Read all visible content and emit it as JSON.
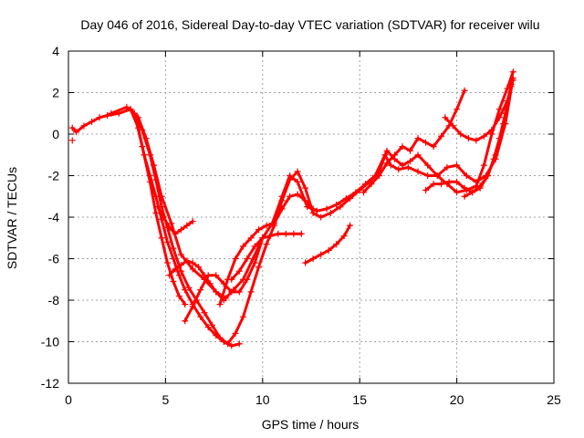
{
  "chart_data": {
    "type": "scatter",
    "title": "Day 046 of 2016, Sidereal Day-to-day VTEC variation (SDTVAR) for receiver wilu",
    "xlabel": "GPS time / hours",
    "ylabel": "SDTVAR / TECUs",
    "xlim": [
      0,
      25
    ],
    "ylim": [
      -12,
      4
    ],
    "xticks": [
      "0",
      "5",
      "10",
      "15",
      "20",
      "25"
    ],
    "yticks": [
      "4",
      "2",
      "0",
      "-2",
      "-4",
      "-6",
      "-8",
      "-10",
      "-12"
    ],
    "grid": true,
    "marker": "+",
    "color": "#ff0000",
    "series": [
      {
        "x": [
          0.2,
          0.4,
          0.8,
          1.2,
          1.6,
          2.0,
          2.6,
          3.2,
          3.6,
          4.0,
          4.4,
          4.8,
          5.3,
          5.8,
          6.4,
          7.0,
          7.6,
          8.1,
          8.5,
          9.0,
          9.5,
          10.0,
          10.5,
          11.0,
          11.4,
          11.8,
          12.3,
          12.8,
          13.3,
          13.8,
          14.3,
          14.8,
          15.3,
          15.8,
          16.3,
          16.6,
          17.0,
          17.5,
          18.0,
          18.5,
          19.0,
          19.5,
          20.0,
          20.5,
          21.0,
          21.5,
          22.0,
          22.5,
          22.9
        ],
        "y": [
          0.3,
          0.1,
          0.4,
          0.6,
          0.8,
          0.9,
          1.0,
          1.2,
          0.8,
          -0.2,
          -1.5,
          -3.0,
          -4.3,
          -5.8,
          -6.5,
          -7.0,
          -7.6,
          -7.9,
          -7.5,
          -7.0,
          -6.0,
          -5.0,
          -4.3,
          -3.0,
          -2.0,
          -2.3,
          -3.5,
          -3.7,
          -3.6,
          -3.4,
          -3.1,
          -2.8,
          -2.4,
          -2.0,
          -1.0,
          -1.5,
          -1.7,
          -1.6,
          -1.8,
          -2.0,
          -2.0,
          -1.6,
          -1.5,
          -2.0,
          -2.3,
          -2.0,
          -1.2,
          0.5,
          2.7
        ]
      },
      {
        "x": [
          2.2,
          3.0,
          3.4,
          3.8,
          4.2,
          4.5,
          4.8,
          5.1,
          5.4,
          5.8,
          6.2,
          6.6,
          7.0,
          7.4,
          7.8,
          8.2,
          8.6,
          9.0,
          9.4,
          9.8,
          10.2,
          10.6,
          11.0,
          11.4,
          11.8,
          12.2,
          12.6,
          13.0,
          13.5,
          14.0,
          14.5,
          15.0,
          15.5,
          16.0,
          16.4,
          16.8,
          17.2,
          17.6,
          18.0,
          18.5,
          19.0,
          19.5,
          20.0,
          20.5,
          21.0,
          21.4,
          21.8,
          22.2,
          22.6,
          22.9
        ],
        "y": [
          1.0,
          1.3,
          1.0,
          0.2,
          -1.0,
          -2.2,
          -3.5,
          -4.5,
          -5.5,
          -6.6,
          -7.4,
          -8.0,
          -8.6,
          -9.2,
          -9.8,
          -10.1,
          -9.6,
          -8.8,
          -7.6,
          -6.4,
          -5.3,
          -4.4,
          -3.2,
          -2.2,
          -1.8,
          -2.6,
          -3.8,
          -4.0,
          -3.8,
          -3.5,
          -3.1,
          -2.7,
          -2.3,
          -1.8,
          -0.8,
          -1.2,
          -1.5,
          -1.3,
          -1.0,
          -1.5,
          -2.0,
          -2.4,
          -2.8,
          -2.7,
          -2.5,
          -1.5,
          0.0,
          1.2,
          2.2,
          3.0
        ]
      },
      {
        "x": [
          3.2,
          3.6,
          3.9,
          4.2,
          4.5,
          4.8,
          5.1,
          5.4,
          5.7,
          6.0,
          6.4,
          6.8,
          7.2,
          7.6,
          8.0,
          8.4,
          8.8
        ],
        "y": [
          1.2,
          0.3,
          -1.0,
          -2.0,
          -3.0,
          -4.1,
          -5.2,
          -6.0,
          -6.8,
          -7.5,
          -8.2,
          -8.8,
          -9.3,
          -9.7,
          -10.0,
          -10.2,
          -10.1
        ]
      },
      {
        "x": [
          3.4,
          3.8,
          4.2,
          4.5,
          4.8,
          5.1,
          5.4,
          5.7,
          6.0
        ],
        "y": [
          1.0,
          -0.6,
          -2.3,
          -3.8,
          -5.0,
          -6.2,
          -7.1,
          -7.8,
          -8.2
        ]
      },
      {
        "x": [
          4.6,
          4.9,
          5.2,
          5.5,
          5.8,
          6.1,
          6.4
        ],
        "y": [
          -3.5,
          -4.0,
          -4.5,
          -4.8,
          -4.6,
          -4.4,
          -4.2
        ]
      },
      {
        "x": [
          5.2,
          5.5,
          5.8,
          6.1,
          6.4,
          6.7,
          7.0,
          7.3,
          7.6,
          8.0
        ],
        "y": [
          -6.8,
          -6.5,
          -6.3,
          -6.1,
          -6.2,
          -6.4,
          -6.8,
          -7.2,
          -7.6,
          -8.0
        ]
      },
      {
        "x": [
          6.0,
          6.4,
          6.8,
          7.2,
          7.6,
          8.0,
          8.4,
          8.8,
          9.2,
          9.6,
          10.0
        ],
        "y": [
          -9.0,
          -8.3,
          -7.5,
          -6.8,
          -6.8,
          -7.2,
          -7.6,
          -7.6,
          -7.0,
          -6.2,
          -5.0
        ]
      },
      {
        "x": [
          7.8,
          8.2,
          8.6,
          9.0,
          9.4,
          9.8,
          10.2,
          10.6,
          11.0,
          11.4,
          11.8,
          12.2,
          12.6
        ],
        "y": [
          -8.2,
          -7.0,
          -6.0,
          -5.4,
          -5.0,
          -4.6,
          -4.4,
          -4.3,
          -3.6,
          -3.0,
          -2.9,
          -3.2,
          -3.6
        ]
      },
      {
        "x": [
          8.4,
          8.8,
          9.2,
          9.6,
          10.0,
          10.4,
          10.8,
          11.2,
          11.6,
          12.0
        ],
        "y": [
          -7.0,
          -6.6,
          -6.0,
          -5.4,
          -5.0,
          -4.9,
          -4.8,
          -4.8,
          -4.8,
          -4.8
        ]
      },
      {
        "x": [
          12.2,
          12.6,
          13.0,
          13.4,
          13.8,
          14.2,
          14.5
        ],
        "y": [
          -6.2,
          -6.0,
          -5.8,
          -5.6,
          -5.3,
          -4.9,
          -4.4
        ]
      },
      {
        "x": [
          15.2,
          15.6,
          16.0,
          16.4,
          16.8,
          17.2,
          17.6,
          18.0,
          18.4,
          18.8,
          19.2,
          19.6,
          20.0,
          20.4
        ],
        "y": [
          -2.8,
          -2.4,
          -2.0,
          -1.4,
          -1.0,
          -0.6,
          -0.8,
          -0.2,
          -0.4,
          -0.6,
          -0.1,
          0.4,
          1.2,
          2.1
        ]
      },
      {
        "x": [
          18.4,
          18.8,
          19.2,
          19.6,
          20.0,
          20.4,
          20.8,
          21.2,
          21.6,
          22.0,
          22.4,
          22.8
        ],
        "y": [
          -2.7,
          -2.4,
          -2.4,
          -2.3,
          -2.3,
          -2.6,
          -2.8,
          -2.5,
          -2.0,
          -1.0,
          0.5,
          2.3
        ]
      },
      {
        "x": [
          19.4,
          19.8,
          20.2,
          20.6,
          21.0,
          21.4,
          21.8,
          22.2,
          22.6,
          22.9
        ],
        "y": [
          0.8,
          0.4,
          0.0,
          -0.2,
          -0.3,
          -0.1,
          0.2,
          0.8,
          1.6,
          2.6
        ]
      },
      {
        "x": [
          20.4,
          20.8,
          21.2,
          21.6,
          21.9,
          22.2,
          22.5,
          22.8
        ],
        "y": [
          -3.0,
          -2.8,
          -2.6,
          -2.0,
          -1.2,
          -0.2,
          1.0,
          2.4
        ]
      },
      {
        "x": [
          0.2
        ],
        "y": [
          -0.3
        ]
      }
    ]
  }
}
